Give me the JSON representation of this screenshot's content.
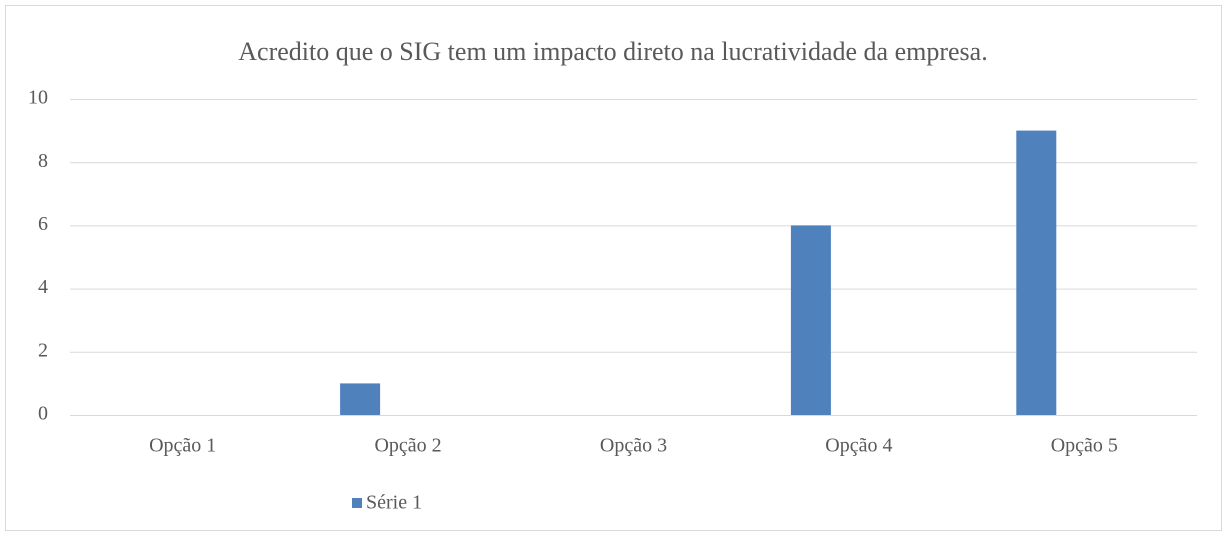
{
  "chart_data": {
    "type": "bar",
    "title": "Acredito que o SIG tem um impacto direto na lucratividade da empresa.",
    "categories": [
      "Opção 1",
      "Opção 2",
      "Opção 3",
      "Opção 4",
      "Opção 5"
    ],
    "series": [
      {
        "name": "Série 1",
        "color": "#4f81bd",
        "values": [
          0,
          1,
          0,
          6,
          9
        ]
      }
    ],
    "ylim": [
      0,
      10
    ],
    "yticks": [
      0,
      2,
      4,
      6,
      8,
      10
    ],
    "grid": true,
    "legend": "bottom"
  }
}
